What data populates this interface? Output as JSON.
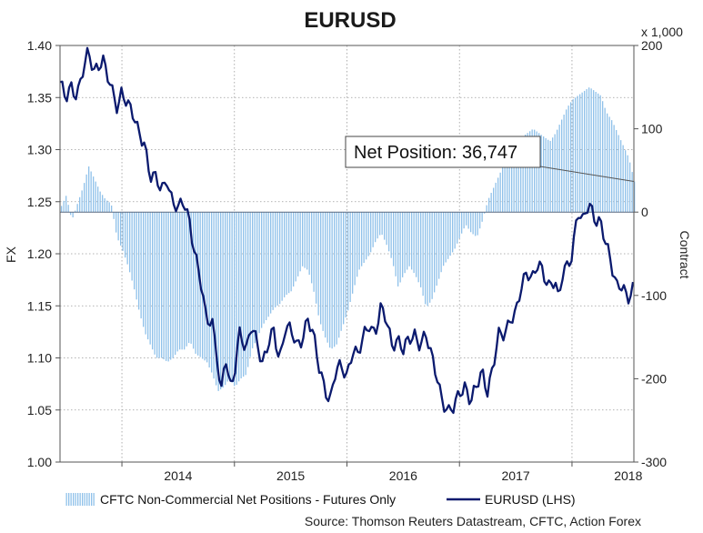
{
  "chart_data": {
    "type": "line",
    "title": "EURUSD",
    "ylabel_left": "FX",
    "ylabel_right": "Contract",
    "right_axis_unit": "x 1,000",
    "ylim_left": [
      1.0,
      1.4
    ],
    "ylim_right": [
      -300,
      200
    ],
    "yticks_left": [
      "1.00",
      "1.05",
      "1.10",
      "1.15",
      "1.20",
      "1.25",
      "1.30",
      "1.35",
      "1.40"
    ],
    "yticks_right": [
      "-300",
      "-200",
      "-100",
      "0",
      "100",
      "200"
    ],
    "x_range": [
      2013.45,
      2018.55
    ],
    "years": [
      2014,
      2015,
      2016,
      2017,
      2018
    ],
    "year_labels": [
      "2014",
      "2015",
      "2016",
      "2017",
      "2018"
    ],
    "year_boundaries": [
      2014.0,
      2015.0,
      2016.0,
      2017.0,
      2018.0
    ],
    "annotation": "Net Position: 36,747",
    "annotation_value": 36.747,
    "legend": {
      "bars": "CFTC Non-Commercial Net Positions - Futures Only",
      "line": "EURUSD (LHS)"
    },
    "source": "Source: Thomson Reuters Datastream, CFTC, Action Forex",
    "colors": {
      "line": "#0b1a6e",
      "bars": "#8fc1ea",
      "grid": "#9a9a9a"
    },
    "series": [
      {
        "name": "EURUSD (LHS)",
        "axis": "left",
        "points": [
          [
            2013.45,
            1.365
          ],
          [
            2013.5,
            1.345
          ],
          [
            2013.55,
            1.36
          ],
          [
            2013.6,
            1.355
          ],
          [
            2013.65,
            1.375
          ],
          [
            2013.7,
            1.39
          ],
          [
            2013.75,
            1.375
          ],
          [
            2013.8,
            1.385
          ],
          [
            2013.83,
            1.39
          ],
          [
            2013.87,
            1.37
          ],
          [
            2013.92,
            1.35
          ],
          [
            2013.96,
            1.34
          ],
          [
            2014.0,
            1.36
          ],
          [
            2014.05,
            1.345
          ],
          [
            2014.1,
            1.33
          ],
          [
            2014.15,
            1.315
          ],
          [
            2014.2,
            1.31
          ],
          [
            2014.25,
            1.275
          ],
          [
            2014.3,
            1.27
          ],
          [
            2014.35,
            1.26
          ],
          [
            2014.4,
            1.275
          ],
          [
            2014.45,
            1.25
          ],
          [
            2014.5,
            1.24
          ],
          [
            2014.55,
            1.25
          ],
          [
            2014.6,
            1.235
          ],
          [
            2014.65,
            1.2
          ],
          [
            2014.7,
            1.17
          ],
          [
            2014.75,
            1.135
          ],
          [
            2014.8,
            1.14
          ],
          [
            2014.85,
            1.1
          ],
          [
            2014.88,
            1.06
          ],
          [
            2014.92,
            1.1
          ],
          [
            2014.96,
            1.07
          ],
          [
            2015.0,
            1.09
          ],
          [
            2015.05,
            1.13
          ],
          [
            2015.1,
            1.1
          ],
          [
            2015.15,
            1.13
          ],
          [
            2015.2,
            1.12
          ],
          [
            2015.25,
            1.095
          ],
          [
            2015.3,
            1.11
          ],
          [
            2015.35,
            1.125
          ],
          [
            2015.4,
            1.1
          ],
          [
            2015.45,
            1.13
          ],
          [
            2015.5,
            1.125
          ],
          [
            2015.55,
            1.11
          ],
          [
            2015.6,
            1.12
          ],
          [
            2015.65,
            1.14
          ],
          [
            2015.7,
            1.12
          ],
          [
            2015.75,
            1.09
          ],
          [
            2015.8,
            1.075
          ],
          [
            2015.85,
            1.06
          ],
          [
            2015.9,
            1.085
          ],
          [
            2015.95,
            1.09
          ],
          [
            2016.0,
            1.085
          ],
          [
            2016.05,
            1.11
          ],
          [
            2016.1,
            1.1
          ],
          [
            2016.15,
            1.12
          ],
          [
            2016.2,
            1.135
          ],
          [
            2016.25,
            1.125
          ],
          [
            2016.3,
            1.145
          ],
          [
            2016.35,
            1.135
          ],
          [
            2016.4,
            1.115
          ],
          [
            2016.45,
            1.12
          ],
          [
            2016.5,
            1.105
          ],
          [
            2016.55,
            1.115
          ],
          [
            2016.6,
            1.125
          ],
          [
            2016.65,
            1.115
          ],
          [
            2016.7,
            1.12
          ],
          [
            2016.75,
            1.1
          ],
          [
            2016.8,
            1.085
          ],
          [
            2016.85,
            1.06
          ],
          [
            2016.9,
            1.045
          ],
          [
            2016.95,
            1.05
          ],
          [
            2017.0,
            1.07
          ],
          [
            2017.05,
            1.075
          ],
          [
            2017.1,
            1.055
          ],
          [
            2017.15,
            1.07
          ],
          [
            2017.2,
            1.09
          ],
          [
            2017.25,
            1.07
          ],
          [
            2017.3,
            1.09
          ],
          [
            2017.35,
            1.12
          ],
          [
            2017.4,
            1.125
          ],
          [
            2017.45,
            1.14
          ],
          [
            2017.5,
            1.14
          ],
          [
            2017.55,
            1.165
          ],
          [
            2017.6,
            1.185
          ],
          [
            2017.65,
            1.18
          ],
          [
            2017.7,
            1.19
          ],
          [
            2017.75,
            1.175
          ],
          [
            2017.8,
            1.17
          ],
          [
            2017.85,
            1.18
          ],
          [
            2017.88,
            1.155
          ],
          [
            2017.92,
            1.18
          ],
          [
            2017.96,
            1.185
          ],
          [
            2018.0,
            1.2
          ],
          [
            2018.05,
            1.245
          ],
          [
            2018.1,
            1.23
          ],
          [
            2018.15,
            1.245
          ],
          [
            2018.2,
            1.235
          ],
          [
            2018.25,
            1.235
          ],
          [
            2018.3,
            1.21
          ],
          [
            2018.35,
            1.185
          ],
          [
            2018.4,
            1.17
          ],
          [
            2018.45,
            1.175
          ],
          [
            2018.48,
            1.16
          ],
          [
            2018.5,
            1.155
          ],
          [
            2018.55,
            1.165
          ]
        ]
      },
      {
        "name": "CFTC Non-Commercial Net Positions - Futures Only",
        "axis": "right",
        "points": [
          [
            2013.45,
            5
          ],
          [
            2013.5,
            20
          ],
          [
            2013.55,
            -10
          ],
          [
            2013.6,
            10
          ],
          [
            2013.65,
            30
          ],
          [
            2013.7,
            55
          ],
          [
            2013.75,
            40
          ],
          [
            2013.8,
            25
          ],
          [
            2013.85,
            15
          ],
          [
            2013.9,
            10
          ],
          [
            2013.95,
            -30
          ],
          [
            2014.0,
            -45
          ],
          [
            2014.05,
            -65
          ],
          [
            2014.1,
            -90
          ],
          [
            2014.15,
            -120
          ],
          [
            2014.2,
            -145
          ],
          [
            2014.25,
            -160
          ],
          [
            2014.3,
            -175
          ],
          [
            2014.35,
            -175
          ],
          [
            2014.4,
            -180
          ],
          [
            2014.45,
            -175
          ],
          [
            2014.5,
            -165
          ],
          [
            2014.55,
            -165
          ],
          [
            2014.6,
            -155
          ],
          [
            2014.65,
            -170
          ],
          [
            2014.7,
            -175
          ],
          [
            2014.75,
            -180
          ],
          [
            2014.8,
            -195
          ],
          [
            2014.85,
            -215
          ],
          [
            2014.9,
            -210
          ],
          [
            2014.95,
            -200
          ],
          [
            2015.0,
            -210
          ],
          [
            2015.05,
            -200
          ],
          [
            2015.1,
            -195
          ],
          [
            2015.15,
            -165
          ],
          [
            2015.2,
            -150
          ],
          [
            2015.25,
            -135
          ],
          [
            2015.3,
            -125
          ],
          [
            2015.35,
            -115
          ],
          [
            2015.4,
            -110
          ],
          [
            2015.45,
            -100
          ],
          [
            2015.5,
            -95
          ],
          [
            2015.55,
            -80
          ],
          [
            2015.6,
            -65
          ],
          [
            2015.65,
            -70
          ],
          [
            2015.7,
            -95
          ],
          [
            2015.75,
            -130
          ],
          [
            2015.8,
            -150
          ],
          [
            2015.85,
            -165
          ],
          [
            2015.9,
            -160
          ],
          [
            2015.95,
            -140
          ],
          [
            2016.0,
            -120
          ],
          [
            2016.05,
            -95
          ],
          [
            2016.1,
            -70
          ],
          [
            2016.15,
            -60
          ],
          [
            2016.2,
            -50
          ],
          [
            2016.25,
            -35
          ],
          [
            2016.3,
            -25
          ],
          [
            2016.35,
            -40
          ],
          [
            2016.4,
            -60
          ],
          [
            2016.45,
            -90
          ],
          [
            2016.5,
            -75
          ],
          [
            2016.55,
            -65
          ],
          [
            2016.6,
            -75
          ],
          [
            2016.65,
            -90
          ],
          [
            2016.7,
            -115
          ],
          [
            2016.75,
            -105
          ],
          [
            2016.8,
            -85
          ],
          [
            2016.85,
            -65
          ],
          [
            2016.9,
            -55
          ],
          [
            2016.95,
            -45
          ],
          [
            2017.0,
            -30
          ],
          [
            2017.05,
            -15
          ],
          [
            2017.1,
            -25
          ],
          [
            2017.15,
            -30
          ],
          [
            2017.2,
            -10
          ],
          [
            2017.25,
            15
          ],
          [
            2017.3,
            30
          ],
          [
            2017.35,
            45
          ],
          [
            2017.4,
            60
          ],
          [
            2017.45,
            75
          ],
          [
            2017.5,
            85
          ],
          [
            2017.55,
            90
          ],
          [
            2017.6,
            95
          ],
          [
            2017.65,
            100
          ],
          [
            2017.7,
            95
          ],
          [
            2017.75,
            90
          ],
          [
            2017.8,
            85
          ],
          [
            2017.85,
            95
          ],
          [
            2017.9,
            110
          ],
          [
            2017.95,
            125
          ],
          [
            2018.0,
            135
          ],
          [
            2018.05,
            140
          ],
          [
            2018.1,
            145
          ],
          [
            2018.15,
            150
          ],
          [
            2018.2,
            145
          ],
          [
            2018.25,
            140
          ],
          [
            2018.3,
            120
          ],
          [
            2018.35,
            110
          ],
          [
            2018.4,
            95
          ],
          [
            2018.45,
            80
          ],
          [
            2018.5,
            65
          ],
          [
            2018.55,
            36.747
          ]
        ]
      }
    ]
  }
}
